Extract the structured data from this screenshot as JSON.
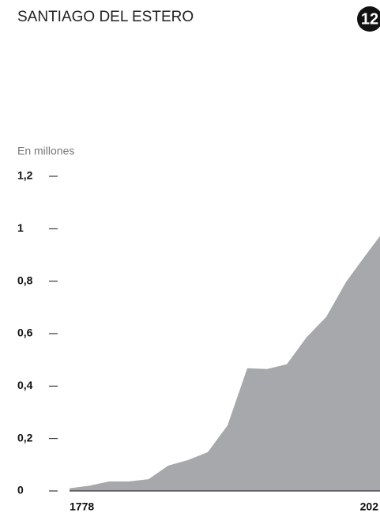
{
  "chart_data": {
    "type": "area",
    "title": "SANTIAGO DEL ESTERO",
    "badge": "12",
    "subtitle": "En millones",
    "categories": [
      "1778",
      null,
      null,
      null,
      null,
      null,
      null,
      null,
      null,
      null,
      null,
      null,
      null,
      null,
      null,
      null,
      "202"
    ],
    "values": [
      0.01,
      0.02,
      0.036,
      0.036,
      0.045,
      0.097,
      0.118,
      0.148,
      0.25,
      0.468,
      0.465,
      0.483,
      0.586,
      0.664,
      0.797,
      0.9,
      1.0
    ],
    "color": "#a7a8ab",
    "ylim": [
      0,
      1.2
    ],
    "yticks": [
      0,
      {
        "value": 0.2,
        "label": "0,2"
      },
      {
        "value": 0.4,
        "label": "0,4"
      },
      {
        "value": 0.6,
        "label": "0,6"
      },
      {
        "value": 0.8,
        "label": "0,8"
      },
      1,
      {
        "value": 1.2,
        "label": "1,2"
      }
    ]
  }
}
